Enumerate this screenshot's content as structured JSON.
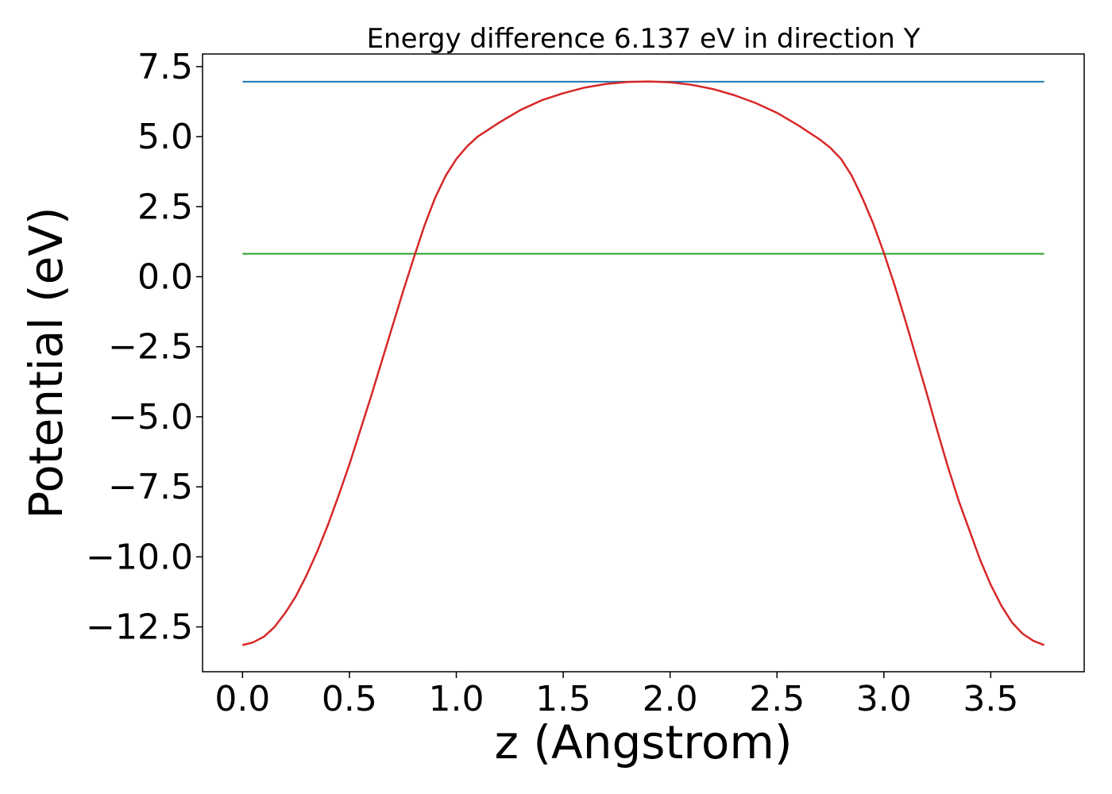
{
  "chart_data": {
    "type": "line",
    "title": "Energy difference 6.137 eV in direction Y",
    "xlabel": "z (Angstrom)",
    "ylabel": "Potential (eV)",
    "xlim": [
      -0.187,
      3.937
    ],
    "ylim": [
      -14.1,
      7.95
    ],
    "xticks": [
      0.0,
      0.5,
      1.0,
      1.5,
      2.0,
      2.5,
      3.0,
      3.5
    ],
    "xtick_labels": [
      "0.0",
      "0.5",
      "1.0",
      "1.5",
      "2.0",
      "2.5",
      "3.0",
      "3.5"
    ],
    "yticks": [
      -12.5,
      -10.0,
      -7.5,
      -5.0,
      -2.5,
      0.0,
      2.5,
      5.0,
      7.5
    ],
    "ytick_labels": [
      "−12.5",
      "−10.0",
      "−7.5",
      "−5.0",
      "−2.5",
      "0.0",
      "2.5",
      "5.0",
      "7.5"
    ],
    "grid": false,
    "series": [
      {
        "color": "#1f77b4",
        "x": [
          0.0,
          3.75
        ],
        "y": [
          6.96,
          6.96
        ]
      },
      {
        "color": "#2ca02c",
        "x": [
          0.0,
          3.75
        ],
        "y": [
          0.82,
          0.82
        ]
      },
      {
        "color": "#d62728",
        "x": [
          0.0,
          0.05,
          0.1,
          0.15,
          0.2,
          0.25,
          0.3,
          0.35,
          0.4,
          0.45,
          0.5,
          0.55,
          0.6,
          0.65,
          0.7,
          0.75,
          0.8,
          0.85,
          0.9,
          0.95,
          1.0,
          1.05,
          1.1,
          1.15,
          1.2,
          1.3,
          1.4,
          1.5,
          1.6,
          1.7,
          1.8,
          1.9,
          2.0,
          2.1,
          2.2,
          2.3,
          2.4,
          2.5,
          2.6,
          2.7,
          2.75,
          2.8,
          2.85,
          2.9,
          2.95,
          3.0,
          3.05,
          3.1,
          3.15,
          3.2,
          3.25,
          3.3,
          3.35,
          3.4,
          3.45,
          3.5,
          3.55,
          3.6,
          3.65,
          3.7,
          3.75
        ],
        "y": [
          -13.15,
          -13.05,
          -12.85,
          -12.5,
          -12.0,
          -11.4,
          -10.65,
          -9.8,
          -8.85,
          -7.8,
          -6.7,
          -5.5,
          -4.3,
          -3.05,
          -1.8,
          -0.55,
          0.65,
          1.8,
          2.8,
          3.6,
          4.2,
          4.65,
          5.0,
          5.25,
          5.5,
          5.95,
          6.3,
          6.55,
          6.75,
          6.88,
          6.95,
          6.97,
          6.94,
          6.85,
          6.7,
          6.48,
          6.2,
          5.85,
          5.4,
          4.9,
          4.6,
          4.2,
          3.6,
          2.8,
          1.9,
          0.85,
          -0.3,
          -1.55,
          -2.85,
          -4.15,
          -5.5,
          -6.8,
          -8.0,
          -9.05,
          -10.1,
          -11.0,
          -11.75,
          -12.35,
          -12.75,
          -13.0,
          -13.15
        ]
      }
    ]
  }
}
